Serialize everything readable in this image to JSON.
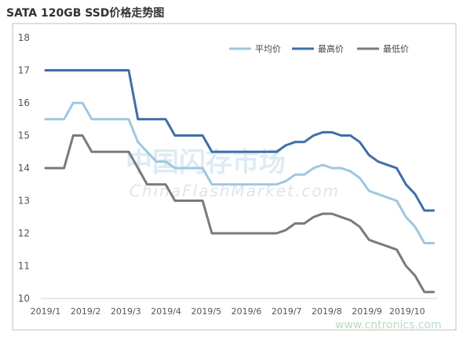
{
  "title": "SATA 120GB SSD价格走势图",
  "watermarks": {
    "cn": "中国闪存市场",
    "en": "ChinaFlashMarket.com",
    "url": "www.cntronics.com"
  },
  "colors": {
    "avg": "#9ec7df",
    "high": "#3f6fa8",
    "low": "#7a7a7a",
    "frame": "#bfbfbf"
  },
  "chart_data": {
    "type": "line",
    "title": "SATA 120GB SSD价格走势图",
    "xlabel": "",
    "ylabel": "",
    "ylim": [
      10,
      18
    ],
    "yticks": [
      10,
      11,
      12,
      13,
      14,
      15,
      16,
      17,
      18
    ],
    "xlim": [
      0,
      9.75
    ],
    "xticks": [
      0,
      1,
      2,
      3,
      4,
      5,
      6,
      7,
      8,
      9
    ],
    "xtick_labels": [
      "2019/1",
      "2019/2",
      "2019/3",
      "2019/4",
      "2019/5",
      "2019/6",
      "2019/7",
      "2019/8",
      "2019/9",
      "2019/10"
    ],
    "grid": false,
    "legend_position": "top-right",
    "series": [
      {
        "name": "平均价",
        "color": "#9ec7df",
        "x": [
          0,
          0.46,
          0.69,
          0.92,
          1.15,
          1.38,
          2.07,
          2.3,
          2.53,
          2.76,
          2.99,
          3.22,
          3.91,
          4.14,
          4.37,
          4.6,
          5.29,
          5.52,
          5.75,
          5.98,
          6.21,
          6.44,
          6.67,
          6.9,
          7.13,
          7.36,
          7.59,
          7.82,
          8.05,
          8.28,
          8.51,
          8.74,
          8.97,
          9.2,
          9.43,
          9.66
        ],
        "values": [
          15.5,
          15.5,
          16,
          16,
          15.5,
          15.5,
          15.5,
          14.8,
          14.5,
          14.2,
          14.2,
          14,
          14,
          13.5,
          13.5,
          13.5,
          13.5,
          13.5,
          13.5,
          13.6,
          13.8,
          13.8,
          14,
          14.1,
          14,
          14,
          13.9,
          13.7,
          13.3,
          13.2,
          13.1,
          13,
          12.5,
          12.2,
          11.7,
          11.7
        ]
      },
      {
        "name": "最高价",
        "color": "#3f6fa8",
        "x": [
          0,
          0.46,
          0.69,
          0.92,
          1.15,
          1.38,
          2.07,
          2.3,
          2.53,
          2.76,
          2.99,
          3.22,
          3.91,
          4.14,
          4.37,
          4.6,
          5.29,
          5.52,
          5.75,
          5.98,
          6.21,
          6.44,
          6.67,
          6.9,
          7.13,
          7.36,
          7.59,
          7.82,
          8.05,
          8.28,
          8.51,
          8.74,
          8.97,
          9.2,
          9.43,
          9.66
        ],
        "values": [
          17,
          17,
          17,
          17,
          17,
          17,
          17,
          15.5,
          15.5,
          15.5,
          15.5,
          15,
          15,
          14.5,
          14.5,
          14.5,
          14.5,
          14.5,
          14.5,
          14.7,
          14.8,
          14.8,
          15,
          15.1,
          15.1,
          15,
          15,
          14.8,
          14.4,
          14.2,
          14.1,
          14,
          13.5,
          13.2,
          12.7,
          12.7
        ]
      },
      {
        "name": "最低价",
        "color": "#7a7a7a",
        "x": [
          0,
          0.46,
          0.69,
          0.92,
          1.15,
          1.38,
          2.07,
          2.3,
          2.53,
          2.76,
          2.99,
          3.22,
          3.91,
          4.14,
          4.37,
          4.6,
          5.29,
          5.52,
          5.75,
          5.98,
          6.21,
          6.44,
          6.67,
          6.9,
          7.13,
          7.36,
          7.59,
          7.82,
          8.05,
          8.28,
          8.51,
          8.74,
          8.97,
          9.2,
          9.43,
          9.66
        ],
        "values": [
          14,
          14,
          15,
          15,
          14.5,
          14.5,
          14.5,
          14,
          13.5,
          13.5,
          13.5,
          13,
          13,
          12,
          12,
          12,
          12,
          12,
          12,
          12.1,
          12.3,
          12.3,
          12.5,
          12.6,
          12.6,
          12.5,
          12.4,
          12.2,
          11.8,
          11.7,
          11.6,
          11.5,
          11,
          10.7,
          10.2,
          10.2
        ]
      }
    ]
  }
}
